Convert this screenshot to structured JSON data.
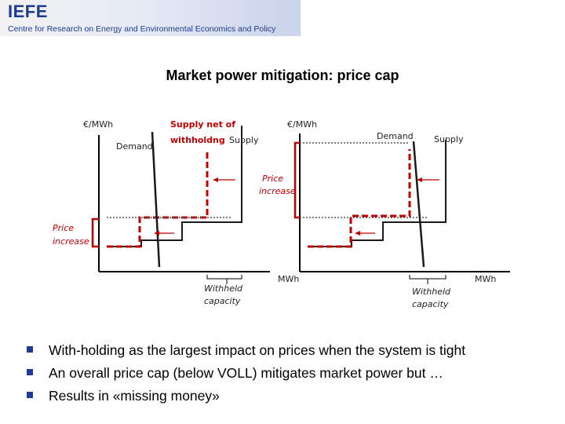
{
  "header": {
    "logo": "IEFE",
    "org": "Centre for Research on Energy and Environmental Economics and Policy"
  },
  "title": "Market power mitigation: price cap",
  "diagram": {
    "left_panel": {
      "y_axis_label": "€/MWh",
      "demand_label": "Demand",
      "supply_net_label_line1": "Supply net of",
      "supply_net_label_line2": "withholdng",
      "supply_label": "Supply",
      "price_increase_line1": "Price",
      "price_increase_line2": "increase",
      "withheld_line1": "Withheld",
      "withheld_line2": "capacity",
      "x_axis_label": "MWh"
    },
    "right_panel": {
      "y_axis_label": "€/MWh",
      "demand_label": "Demand",
      "supply_label": "Supply",
      "price_increase_line1": "Price",
      "price_increase_line2": "increase",
      "withheld_line1": "Withheld",
      "withheld_line2": "capacity",
      "x_axis_label": "MWh"
    },
    "colors": {
      "supply": "#1a1a1a",
      "withholding": "#c00000",
      "cap": "#555555"
    }
  },
  "bullets": [
    "With-holding as the largest impact on prices when the system is tight",
    "An overall price cap (below VOLL) mitigates market power but …",
    "Results in «missing money»"
  ]
}
